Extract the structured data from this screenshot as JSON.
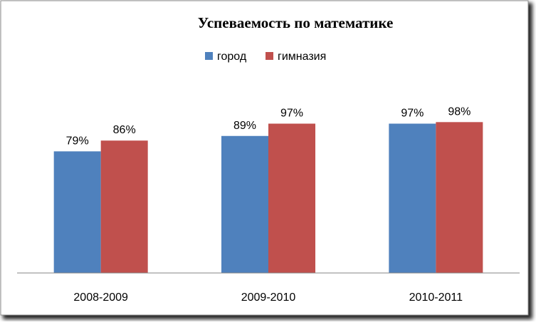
{
  "chart_data": {
    "type": "bar",
    "title": "Успеваемость по математике",
    "categories": [
      "2008-2009",
      "2009-2010",
      "2010-2011"
    ],
    "series": [
      {
        "name": "город",
        "color": "#4f81bd",
        "values": [
          79,
          89,
          97
        ],
        "labels": [
          "79%",
          "89%",
          "97%"
        ]
      },
      {
        "name": "гимназия",
        "color": "#c0504d",
        "values": [
          86,
          97,
          98
        ],
        "labels": [
          "86%",
          "97%",
          "98%"
        ]
      }
    ],
    "ylim": [
      0,
      100
    ],
    "unit": "%",
    "grid": false,
    "legend_position": "top"
  }
}
